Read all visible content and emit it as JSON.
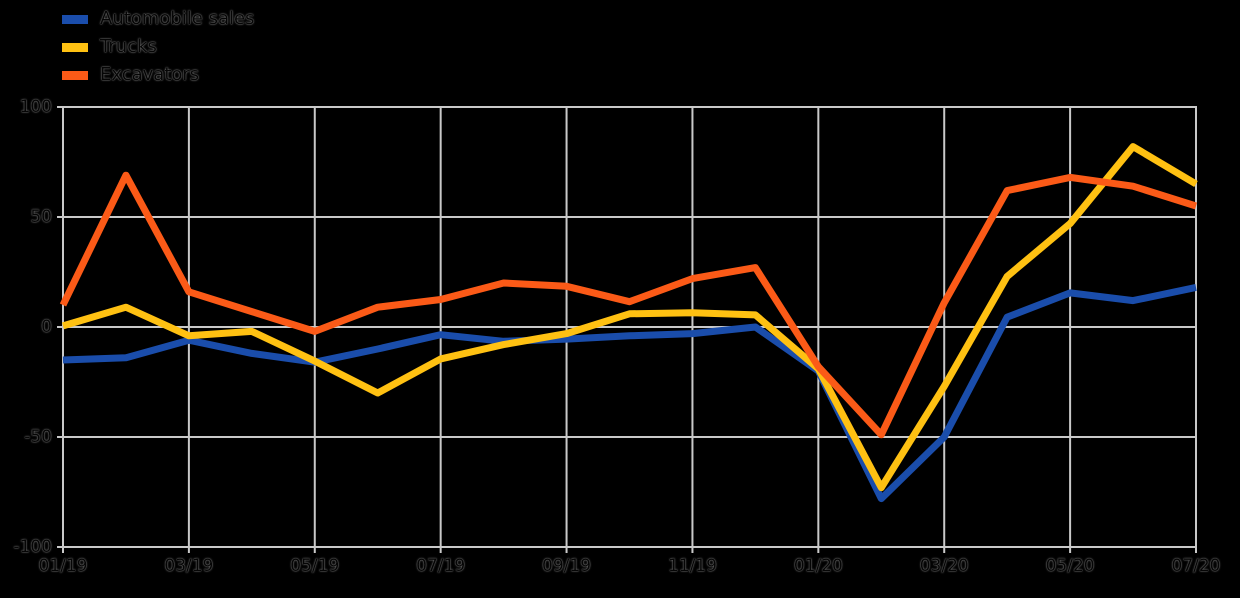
{
  "colors": {
    "background": "#000000",
    "grid": "#c9c9c9",
    "axis_text": "#050505",
    "automobile_sales": "#1a4dab",
    "trucks": "#ffc112",
    "excavators": "#fb5a17"
  },
  "legend": {
    "position": "top-left",
    "items": [
      {
        "label": "Automobile sales",
        "color": "#1a4dab"
      },
      {
        "label": "Trucks",
        "color": "#ffc112"
      },
      {
        "label": "Excavators",
        "color": "#fb5a17"
      }
    ]
  },
  "chart_data": {
    "type": "line",
    "title": "",
    "xlabel": "",
    "ylabel": "",
    "grid": true,
    "ylim": [
      -100,
      100
    ],
    "yticks": [
      100,
      50,
      0,
      -50,
      -100
    ],
    "ytick_labels": [
      "100",
      "50",
      "0",
      "-50",
      "-100"
    ],
    "x": [
      "01/19",
      "02/19",
      "03/19",
      "04/19",
      "05/19",
      "06/19",
      "07/19",
      "08/19",
      "09/19",
      "10/19",
      "11/19",
      "12/19",
      "01/20",
      "02/20",
      "03/20",
      "04/20",
      "05/20",
      "06/20",
      "07/20"
    ],
    "xtick_every": 2,
    "xtick_labels": [
      "01/19",
      "03/19",
      "05/19",
      "07/19",
      "09/19",
      "11/19",
      "01/20",
      "03/20",
      "05/20",
      "07/20"
    ],
    "series": [
      {
        "name": "Automobile sales",
        "color": "#1a4dab",
        "values": [
          -15,
          -14,
          -6,
          -12,
          -16,
          -10,
          -3.5,
          -6.5,
          -5.5,
          -4,
          -3,
          0,
          -20,
          -78,
          -50,
          4.5,
          15.5,
          12,
          18
        ]
      },
      {
        "name": "Trucks",
        "color": "#ffc112",
        "values": [
          0.5,
          9,
          -4,
          -2,
          -15.5,
          -30,
          -14.5,
          -8,
          -3,
          6,
          6.5,
          5.5,
          -19,
          -73,
          -27,
          23,
          47,
          82,
          65
        ]
      },
      {
        "name": "Excavators",
        "color": "#fb5a17",
        "values": [
          10,
          69,
          16,
          7,
          -2,
          9,
          12.5,
          20,
          18.5,
          11.5,
          22,
          27,
          -18,
          -49,
          11,
          62,
          68,
          64,
          55
        ]
      }
    ]
  }
}
